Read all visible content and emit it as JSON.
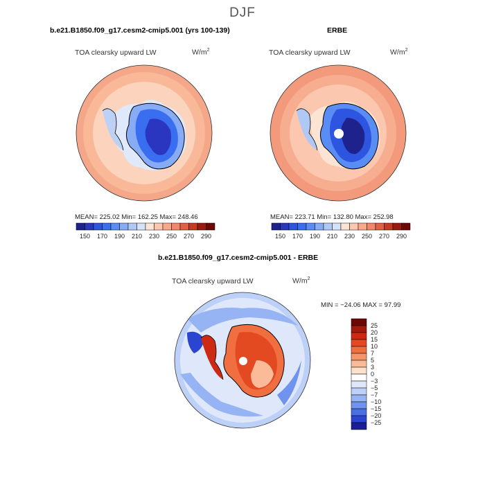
{
  "figure": {
    "title": "DJF"
  },
  "chart_data": [
    {
      "type": "heatmap",
      "projection": "south-polar-stereographic",
      "panel_title": "b.e21.B1850.f09_g17.cesm2-cmip5.001 (yrs 100-139)",
      "variable": "TOA clearsky upward LW",
      "units_base": "W/m",
      "units_exp": "2",
      "stats": {
        "mean": 225.02,
        "min": 162.25,
        "max": 248.46
      },
      "stats_label": "MEAN= 225.02   Min= 162.25   Max= 248.46",
      "colorbar": {
        "orientation": "horizontal",
        "levels": [
          150,
          160,
          170,
          180,
          190,
          200,
          210,
          220,
          230,
          240,
          250,
          260,
          270,
          280,
          290
        ],
        "tick_labels": [
          "150",
          "170",
          "190",
          "210",
          "230",
          "250",
          "270",
          "290"
        ]
      }
    },
    {
      "type": "heatmap",
      "projection": "south-polar-stereographic",
      "panel_title": "ERBE",
      "variable": "TOA clearsky upward LW",
      "units_base": "W/m",
      "units_exp": "2",
      "stats": {
        "mean": 223.71,
        "min": 132.8,
        "max": 252.98
      },
      "stats_label": "MEAN= 223.71   Min= 132.80   Max= 252.98",
      "colorbar": {
        "orientation": "horizontal",
        "levels": [
          150,
          160,
          170,
          180,
          190,
          200,
          210,
          220,
          230,
          240,
          250,
          260,
          270,
          280,
          290
        ],
        "tick_labels": [
          "150",
          "170",
          "190",
          "210",
          "230",
          "250",
          "270",
          "290"
        ]
      }
    },
    {
      "type": "heatmap",
      "projection": "south-polar-stereographic",
      "panel_title": "b.e21.B1850.f09_g17.cesm2-cmip5.001 - ERBE",
      "variable": "TOA clearsky upward LW",
      "units_base": "W/m",
      "units_exp": "2",
      "stats": {
        "min": -24.06,
        "max": 97.99
      },
      "stats_label": "MIN = −24.06 MAX =  97.99",
      "colorbar": {
        "orientation": "vertical",
        "levels": [
          25,
          20,
          15,
          10,
          7,
          5,
          3,
          0,
          -3,
          -5,
          -7,
          -10,
          -15,
          -20,
          -25
        ],
        "tick_labels": [
          "25",
          "20",
          "15",
          "10",
          "7",
          "5",
          "3",
          "0",
          "−3",
          "−5",
          "−7",
          "−10",
          "−15",
          "−20",
          "−25"
        ]
      }
    }
  ],
  "colors": {
    "seq_scale": [
      "#1e228d",
      "#2a35c0",
      "#2d55e0",
      "#3a6ef0",
      "#5a8cf5",
      "#87acf5",
      "#b0c8f5",
      "#d5e2f8",
      "#fbe4d3",
      "#fcc8ad",
      "#f9a98a",
      "#f28669",
      "#e25f44",
      "#c63a22",
      "#9b1a0d",
      "#6e0804"
    ],
    "diff_scale": [
      "#6e0804",
      "#a31a0e",
      "#cc2a12",
      "#e44a22",
      "#f06e3f",
      "#f7956a",
      "#fbbb98",
      "#fde0cb",
      "#ffffff",
      "#dfe8fb",
      "#bdd0f8",
      "#96b4f3",
      "#6f93ee",
      "#4a6fe5",
      "#2a45cf",
      "#1a1f96"
    ]
  }
}
